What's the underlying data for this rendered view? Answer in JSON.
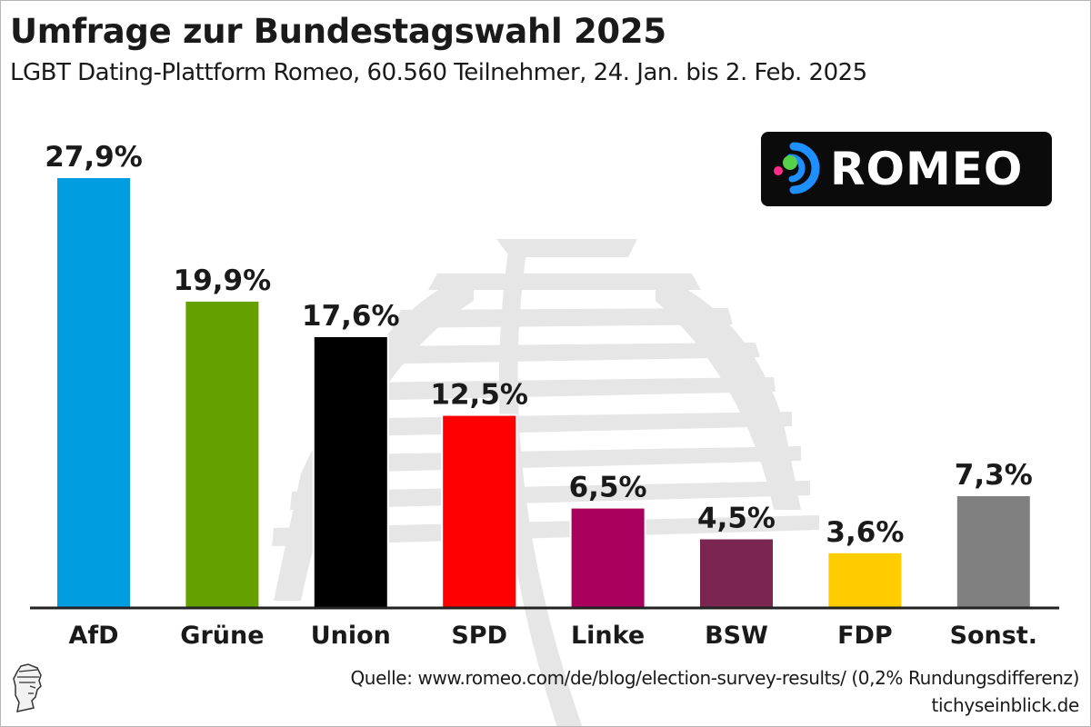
{
  "chart_data": {
    "type": "bar",
    "title": "Umfrage zur Bundestagswahl 2025",
    "subtitle": "LGBT Dating-Plattform Romeo, 60.560 Teilnehmer, 24. Jan. bis 2. Feb. 2025",
    "categories": [
      "AfD",
      "Grüne",
      "Union",
      "SPD",
      "Linke",
      "BSW",
      "FDP",
      "Sonst."
    ],
    "values": [
      27.9,
      19.9,
      17.6,
      12.5,
      6.5,
      4.5,
      3.6,
      7.3
    ],
    "value_labels": [
      "27,9%",
      "19,9%",
      "17,6%",
      "12,5%",
      "6,5%",
      "4,5%",
      "3,6%",
      "7,3%"
    ],
    "colors": [
      "#009ee0",
      "#64a000",
      "#000000",
      "#ff0000",
      "#a8005c",
      "#7a2651",
      "#ffcc00",
      "#808080"
    ],
    "ylim": [
      0,
      27.9
    ],
    "xlabel": "",
    "ylabel": "",
    "grid": false,
    "legend": "none"
  },
  "logo": {
    "text": "ROMEO",
    "background": "#0b0b0b",
    "accent_colors": [
      "#1e8fff",
      "#56d14a",
      "#ff2d8a"
    ]
  },
  "footer": {
    "source": "Quelle: www.romeo.com/de/blog/election-survey-results/ (0,2% Rundungsdifferenz)",
    "credit": "tichyseinblick.de",
    "publisher_icon": "statue-head-icon"
  }
}
